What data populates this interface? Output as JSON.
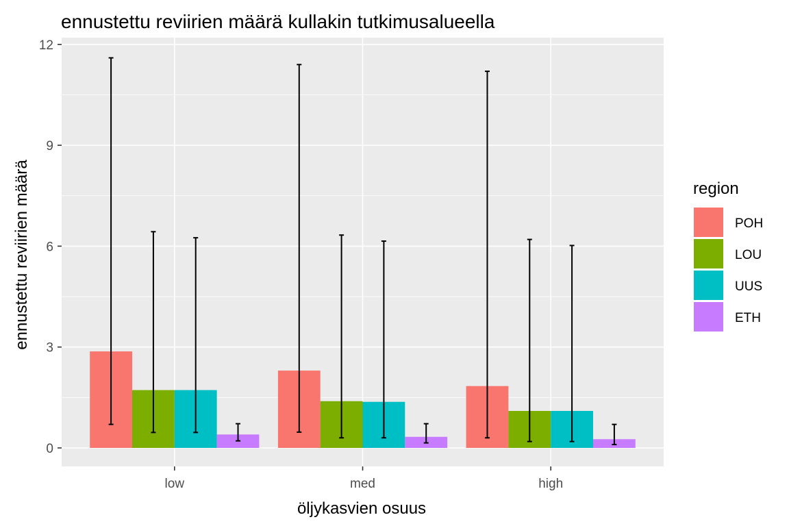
{
  "chart_data": {
    "type": "bar",
    "title": "ennustettu reviirien määrä kullakin tutkimusalueella",
    "xlabel": "öljykasvien osuus",
    "ylabel": "ennustettu reviirien määrä",
    "categories": [
      "low",
      "med",
      "high"
    ],
    "ylim": [
      -0.55,
      12.2
    ],
    "yticks": [
      0,
      3,
      6,
      9,
      12
    ],
    "grid": true,
    "legend": {
      "title": "region",
      "position": "right"
    },
    "series": [
      {
        "name": "POH",
        "color": "#F8766D",
        "values": [
          2.87,
          2.3,
          1.84
        ],
        "lower": [
          0.7,
          0.47,
          0.3
        ],
        "upper": [
          11.6,
          11.4,
          11.2
        ]
      },
      {
        "name": "LOU",
        "color": "#7CAE00",
        "values": [
          1.72,
          1.39,
          1.1
        ],
        "lower": [
          0.46,
          0.3,
          0.19
        ],
        "upper": [
          6.43,
          6.33,
          6.2
        ]
      },
      {
        "name": "UUS",
        "color": "#00BFC4",
        "values": [
          1.72,
          1.37,
          1.1
        ],
        "lower": [
          0.46,
          0.3,
          0.19
        ],
        "upper": [
          6.25,
          6.15,
          6.02
        ]
      },
      {
        "name": "ETH",
        "color": "#C77CFF",
        "values": [
          0.4,
          0.33,
          0.26
        ],
        "lower": [
          0.21,
          0.15,
          0.1
        ],
        "upper": [
          0.72,
          0.72,
          0.7
        ]
      }
    ]
  }
}
